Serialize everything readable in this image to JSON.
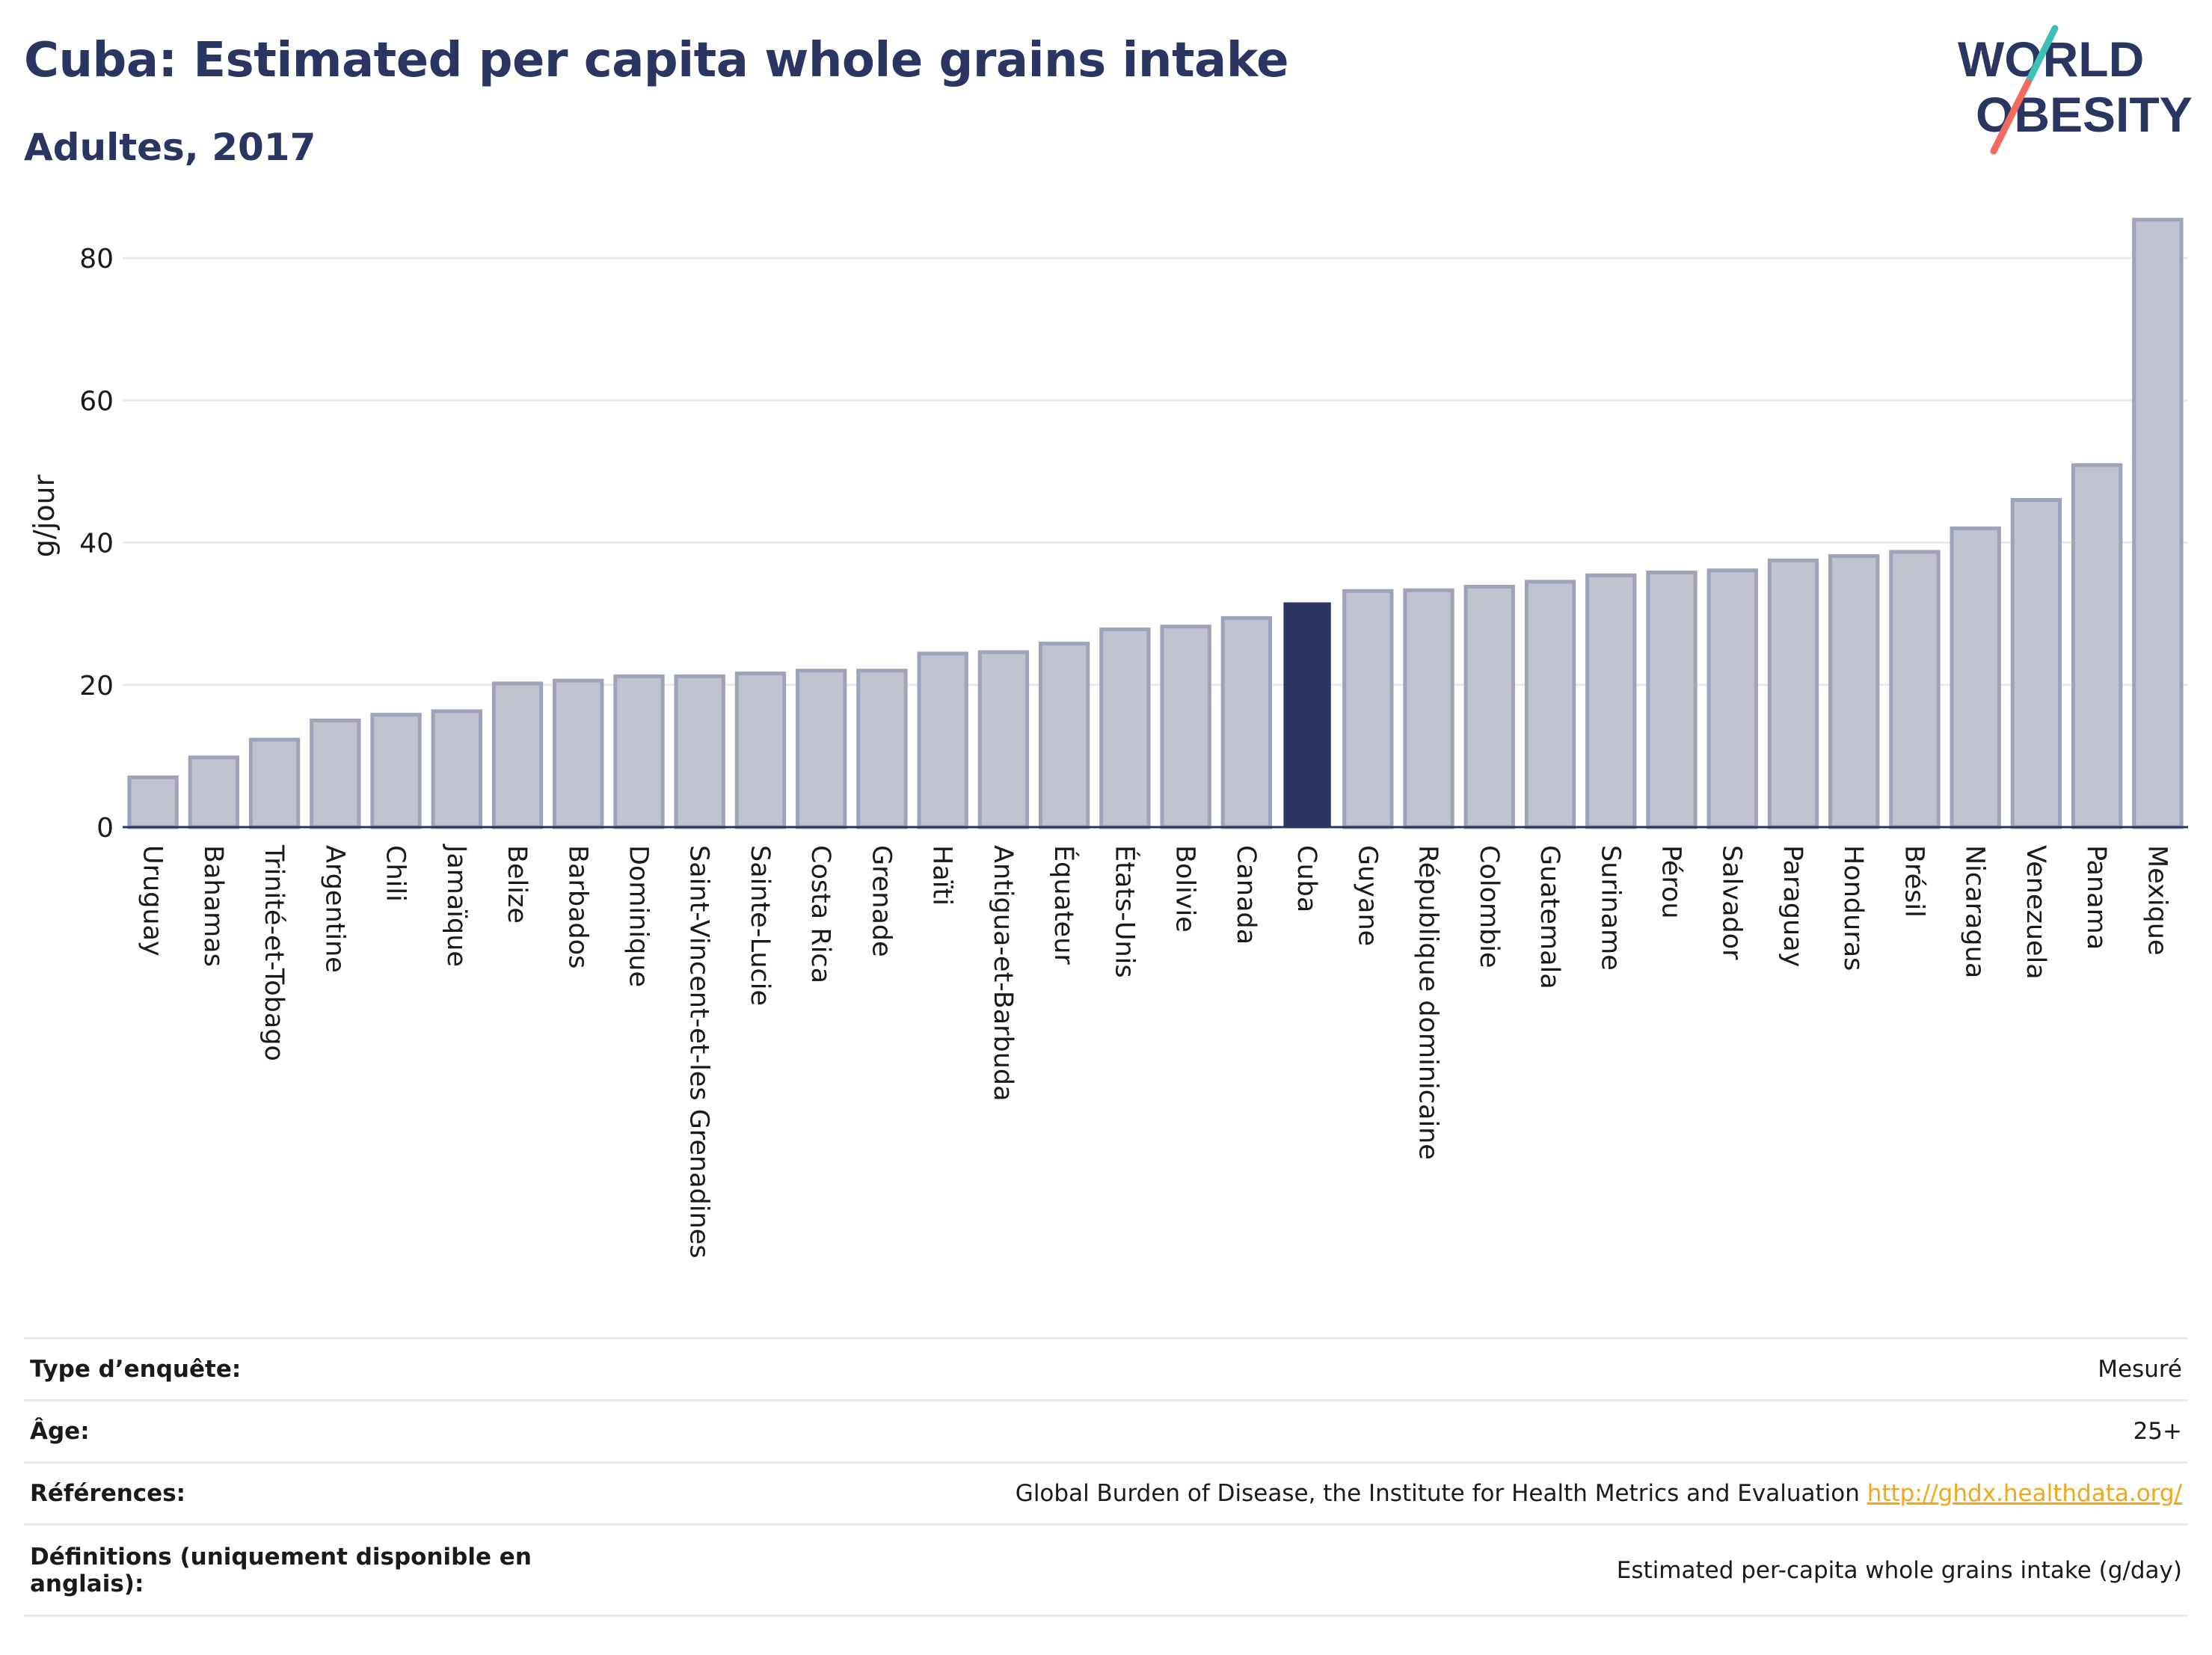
{
  "header": {
    "title": "Cuba: Estimated per capita whole grains intake",
    "subtitle": "Adultes, 2017"
  },
  "logo": {
    "line1": "WORLD",
    "line2": "OBESITY"
  },
  "colors": {
    "highlight": "#2b3562",
    "bar_fill": "#bfc3d0",
    "bar_stroke": "#9ea3b8",
    "grid": "#e8e9ee",
    "axis": "#2b3562",
    "logo_teal": "#3cbfb4",
    "logo_coral": "#ee6b5d"
  },
  "chart_data": {
    "type": "bar",
    "title": "Cuba: Estimated per capita whole grains intake",
    "subtitle": "Adultes, 2017",
    "ylabel": "g/jour",
    "xlabel": "",
    "ylim": [
      0,
      90
    ],
    "yticks": [
      0,
      20,
      40,
      60,
      80
    ],
    "grid": true,
    "highlight": "Cuba",
    "categories": [
      "Uruguay",
      "Bahamas",
      "Trinité-et-Tobago",
      "Argentine",
      "Chili",
      "Jamaïque",
      "Belize",
      "Barbados",
      "Dominique",
      "Saint-Vincent-et-les Grenadines",
      "Sainte-Lucie",
      "Costa Rica",
      "Grenade",
      "Haïti",
      "Antigua-et-Barbuda",
      "Équateur",
      "États-Unis",
      "Bolivie",
      "Canada",
      "Cuba",
      "Guyane",
      "République dominicaine",
      "Colombie",
      "Guatemala",
      "Suriname",
      "Pérou",
      "Salvador",
      "Paraguay",
      "Honduras",
      "Brésil",
      "Nicaragua",
      "Venezuela",
      "Panama",
      "Mexique"
    ],
    "values": [
      7,
      9.8,
      12.3,
      15,
      15.8,
      16.3,
      20.2,
      20.6,
      21.2,
      21.2,
      21.6,
      22,
      22,
      24.4,
      24.6,
      25.8,
      27.8,
      28.2,
      29.4,
      31.6,
      33.2,
      33.3,
      33.8,
      34.5,
      35.4,
      35.8,
      36.1,
      37.5,
      38.1,
      38.7,
      42,
      46,
      50.9,
      85.4
    ]
  },
  "info": {
    "survey_label": "Type d’enquête:",
    "survey_value": "Mesuré",
    "age_label": "Âge:",
    "age_value": "25+",
    "refs_label": "Références:",
    "refs_value": "Global Burden of Disease, the Institute for Health Metrics and Evaluation",
    "refs_link": "http://ghdx.healthdata.org/",
    "defs_label": "Définitions (uniquement disponible en anglais):",
    "defs_value": "Estimated per-capita whole grains intake (g/day)"
  }
}
